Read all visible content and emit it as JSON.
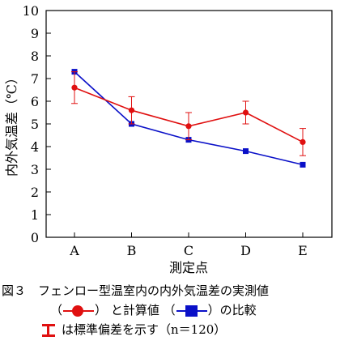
{
  "chart_data": {
    "type": "line",
    "categories": [
      "A",
      "B",
      "C",
      "D",
      "E"
    ],
    "ylabel": "内外気温差（℃）",
    "xlabel": "測定点",
    "ylim": [
      0,
      10
    ],
    "yticks": [
      0,
      1,
      2,
      3,
      4,
      5,
      6,
      7,
      8,
      9,
      10
    ],
    "grid": false,
    "series": [
      {
        "key": "measured",
        "color": "#e01010",
        "marker": "circle",
        "values": [
          6.6,
          5.6,
          4.9,
          5.5,
          4.2
        ],
        "error": [
          0.7,
          0.6,
          0.6,
          0.5,
          0.6
        ]
      },
      {
        "key": "calculated",
        "color": "#0a10c8",
        "marker": "square",
        "values": [
          7.3,
          5.0,
          4.3,
          3.8,
          3.2
        ]
      }
    ]
  },
  "caption": {
    "line1": "図３　フェンロー型温室内の内外気温差の実測値",
    "paren_open": "（",
    "paren_close": "）",
    "and_calc": "と計算値",
    "comparison": "の比較",
    "error_note": "は標準偏差を示す（n＝120）"
  }
}
